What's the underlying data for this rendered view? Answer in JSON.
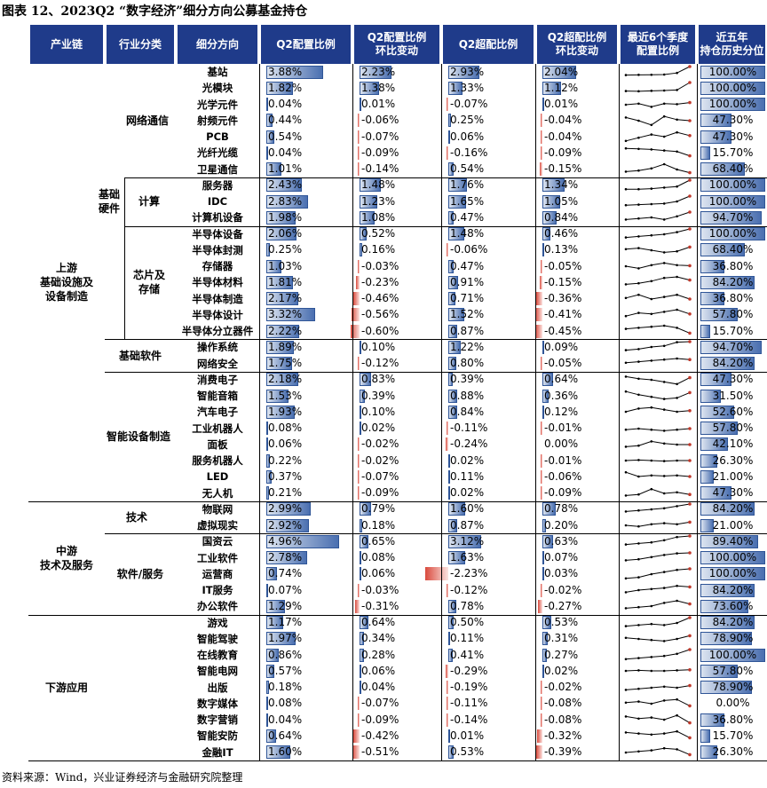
{
  "title": "图表 12、2023Q2 “数字经济”细分方向公募基金持仓",
  "headers": [
    {
      "l1": "产业链",
      "l2": ""
    },
    {
      "l1": "行业分类",
      "l2": ""
    },
    {
      "l1": "细分方向",
      "l2": ""
    },
    {
      "l1": "Q2配置比例",
      "l2": ""
    },
    {
      "l1": "Q2配置比例",
      "l2": "环比变动"
    },
    {
      "l1": "Q2超配比例",
      "l2": ""
    },
    {
      "l1": "Q2超配比例",
      "l2": "环比变动"
    },
    {
      "l1": "最近6个季度",
      "l2": "配置比例"
    },
    {
      "l1": "近五年",
      "l2": "持仓历史分位"
    }
  ],
  "groups": {
    "upstream": "上游\n基础设施及\n设备制造",
    "midstream": "中游\n技术及服务",
    "downstream": "下游应用",
    "basic_hardware": "基础\n硬件",
    "network_comm": "网络通信",
    "computing": "计算",
    "chips_storage": "芯片及\n存储",
    "basic_software": "基础软件",
    "smart_devices": "智能设备制造",
    "technology": "技术",
    "software_services": "软件/服务"
  },
  "rows": [
    {
      "name": "基站",
      "alloc": "3.88%",
      "alloc_v": 3.88,
      "chg": "2.23%",
      "chg_v": 2.23,
      "over": "2.93%",
      "over_v": 2.93,
      "ochg": "2.04%",
      "ochg_v": 2.04,
      "pct": "100.00%",
      "pct_v": 100,
      "spark": [
        0.2,
        0.22,
        0.23,
        0.25,
        0.4,
        1.0
      ]
    },
    {
      "name": "光模块",
      "alloc": "1.82%",
      "alloc_v": 1.82,
      "chg": "1.38%",
      "chg_v": 1.38,
      "over": "1.33%",
      "over_v": 1.33,
      "ochg": "1.12%",
      "ochg_v": 1.12,
      "pct": "100.00%",
      "pct_v": 100,
      "spark": [
        0.2,
        0.18,
        0.22,
        0.25,
        0.3,
        1.0
      ]
    },
    {
      "name": "光学元件",
      "alloc": "0.04%",
      "alloc_v": 0.04,
      "chg": "0.01%",
      "chg_v": 0.01,
      "over": "-0.07%",
      "over_v": -0.07,
      "ochg": "0.01%",
      "ochg_v": 0.01,
      "pct": "100.00%",
      "pct_v": 100,
      "spark": [
        0.5,
        0.6,
        0.3,
        0.6,
        0.55,
        0.7
      ]
    },
    {
      "name": "射频元件",
      "alloc": "0.44%",
      "alloc_v": 0.44,
      "chg": "-0.06%",
      "chg_v": -0.06,
      "over": "0.25%",
      "over_v": 0.25,
      "ochg": "-0.04%",
      "ochg_v": -0.04,
      "pct": "47.30%",
      "pct_v": 47.3,
      "spark": [
        0.8,
        0.5,
        0.1,
        0.9,
        0.6,
        0.5
      ]
    },
    {
      "name": "PCB",
      "alloc": "0.54%",
      "alloc_v": 0.54,
      "chg": "-0.07%",
      "chg_v": -0.07,
      "over": "0.06%",
      "over_v": 0.06,
      "ochg": "-0.04%",
      "ochg_v": -0.04,
      "pct": "47.30%",
      "pct_v": 47.3,
      "spark": [
        0.1,
        0.4,
        0.7,
        0.5,
        0.9,
        0.6
      ]
    },
    {
      "name": "光纤光缆",
      "alloc": "0.04%",
      "alloc_v": 0.04,
      "chg": "-0.09%",
      "chg_v": -0.09,
      "over": "-0.16%",
      "over_v": -0.16,
      "ochg": "-0.09%",
      "ochg_v": -0.09,
      "pct": "15.70%",
      "pct_v": 15.7,
      "spark": [
        0.9,
        0.85,
        0.8,
        0.7,
        0.6,
        0.2
      ]
    },
    {
      "name": "卫星通信",
      "alloc": "1.01%",
      "alloc_v": 1.01,
      "chg": "-0.14%",
      "chg_v": -0.14,
      "over": "0.54%",
      "over_v": 0.54,
      "ochg": "-0.15%",
      "ochg_v": -0.15,
      "pct": "68.40%",
      "pct_v": 68.4,
      "spark": [
        0.3,
        0.4,
        0.6,
        1.0,
        0.5,
        0.2
      ]
    },
    {
      "name": "服务器",
      "alloc": "2.43%",
      "alloc_v": 2.43,
      "chg": "1.48%",
      "chg_v": 1.48,
      "over": "1.76%",
      "over_v": 1.76,
      "ochg": "1.34%",
      "ochg_v": 1.34,
      "pct": "100.00%",
      "pct_v": 100,
      "spark": [
        0.15,
        0.15,
        0.2,
        0.3,
        0.4,
        1.0
      ]
    },
    {
      "name": "IDC",
      "alloc": "2.83%",
      "alloc_v": 2.83,
      "chg": "1.23%",
      "chg_v": 1.23,
      "over": "1.65%",
      "over_v": 1.65,
      "ochg": "1.05%",
      "ochg_v": 1.05,
      "pct": "100.00%",
      "pct_v": 100,
      "spark": [
        0.15,
        0.2,
        0.25,
        0.3,
        0.5,
        1.0
      ]
    },
    {
      "name": "计算机设备",
      "alloc": "1.98%",
      "alloc_v": 1.98,
      "chg": "1.08%",
      "chg_v": 1.08,
      "over": "0.47%",
      "over_v": 0.47,
      "ochg": "0.84%",
      "ochg_v": 0.84,
      "pct": "94.70%",
      "pct_v": 94.7,
      "spark": [
        0.3,
        0.4,
        0.5,
        0.3,
        0.6,
        1.0
      ]
    },
    {
      "name": "半导体设备",
      "alloc": "2.06%",
      "alloc_v": 2.06,
      "chg": "0.52%",
      "chg_v": 0.52,
      "over": "1.48%",
      "over_v": 1.48,
      "ochg": "0.46%",
      "ochg_v": 0.46,
      "pct": "100.00%",
      "pct_v": 100,
      "spark": [
        0.2,
        0.3,
        0.4,
        0.5,
        0.7,
        1.0
      ]
    },
    {
      "name": "半导体封测",
      "alloc": "0.25%",
      "alloc_v": 0.25,
      "chg": "0.16%",
      "chg_v": 0.16,
      "over": "-0.06%",
      "over_v": -0.06,
      "ochg": "0.13%",
      "ochg_v": 0.13,
      "pct": "68.40%",
      "pct_v": 68.4,
      "spark": [
        0.6,
        0.7,
        0.5,
        0.3,
        0.4,
        0.8
      ]
    },
    {
      "name": "存储器",
      "alloc": "1.03%",
      "alloc_v": 1.03,
      "chg": "-0.03%",
      "chg_v": -0.03,
      "over": "0.47%",
      "over_v": 0.47,
      "ochg": "-0.05%",
      "ochg_v": -0.05,
      "pct": "36.80%",
      "pct_v": 36.8,
      "spark": [
        0.5,
        0.3,
        0.6,
        0.8,
        0.6,
        0.55
      ]
    },
    {
      "name": "半导体材料",
      "alloc": "1.81%",
      "alloc_v": 1.81,
      "chg": "-0.23%",
      "chg_v": -0.23,
      "over": "0.91%",
      "over_v": 0.91,
      "ochg": "-0.15%",
      "ochg_v": -0.15,
      "pct": "84.20%",
      "pct_v": 84.2,
      "spark": [
        0.3,
        0.4,
        0.6,
        0.9,
        1.0,
        0.7
      ]
    },
    {
      "name": "半导体制造",
      "alloc": "2.17%",
      "alloc_v": 2.17,
      "chg": "-0.46%",
      "chg_v": -0.46,
      "over": "0.71%",
      "over_v": 0.71,
      "ochg": "-0.36%",
      "ochg_v": -0.36,
      "pct": "36.80%",
      "pct_v": 36.8,
      "spark": [
        0.6,
        0.9,
        0.5,
        0.7,
        0.9,
        0.5
      ]
    },
    {
      "name": "半导体设计",
      "alloc": "3.32%",
      "alloc_v": 3.32,
      "chg": "-0.56%",
      "chg_v": -0.56,
      "over": "1.52%",
      "over_v": 1.52,
      "ochg": "-0.41%",
      "ochg_v": -0.41,
      "pct": "57.80%",
      "pct_v": 57.8,
      "spark": [
        0.4,
        0.7,
        0.6,
        0.8,
        1.0,
        0.6
      ]
    },
    {
      "name": "半导体分立器件",
      "alloc": "2.22%",
      "alloc_v": 2.22,
      "chg": "-0.60%",
      "chg_v": -0.6,
      "over": "0.87%",
      "over_v": 0.87,
      "ochg": "-0.45%",
      "ochg_v": -0.45,
      "pct": "15.70%",
      "pct_v": 15.7,
      "spark": [
        0.7,
        0.8,
        0.9,
        1.0,
        0.8,
        0.3
      ]
    },
    {
      "name": "操作系统",
      "alloc": "1.89%",
      "alloc_v": 1.89,
      "chg": "0.10%",
      "chg_v": 0.1,
      "over": "1.22%",
      "over_v": 1.22,
      "ochg": "0.09%",
      "ochg_v": 0.09,
      "pct": "94.70%",
      "pct_v": 94.7,
      "spark": [
        0.2,
        0.3,
        0.5,
        0.6,
        0.95,
        1.0
      ]
    },
    {
      "name": "网络安全",
      "alloc": "1.75%",
      "alloc_v": 1.75,
      "chg": "-0.12%",
      "chg_v": -0.12,
      "over": "0.80%",
      "over_v": 0.8,
      "ochg": "-0.05%",
      "ochg_v": -0.05,
      "pct": "84.20%",
      "pct_v": 84.2,
      "spark": [
        0.6,
        0.7,
        0.8,
        0.9,
        1.0,
        0.9
      ]
    },
    {
      "name": "消费电子",
      "alloc": "2.18%",
      "alloc_v": 2.18,
      "chg": "0.83%",
      "chg_v": 0.83,
      "over": "0.39%",
      "over_v": 0.39,
      "ochg": "0.64%",
      "ochg_v": 0.64,
      "pct": "47.30%",
      "pct_v": 47.3,
      "spark": [
        0.8,
        0.6,
        0.5,
        0.3,
        0.1,
        0.7
      ]
    },
    {
      "name": "智能音箱",
      "alloc": "1.53%",
      "alloc_v": 1.53,
      "chg": "0.39%",
      "chg_v": 0.39,
      "over": "0.88%",
      "over_v": 0.88,
      "ochg": "0.36%",
      "ochg_v": 0.36,
      "pct": "31.50%",
      "pct_v": 31.5,
      "spark": [
        0.9,
        0.6,
        0.4,
        0.2,
        0.3,
        0.8
      ]
    },
    {
      "name": "汽车电子",
      "alloc": "1.93%",
      "alloc_v": 1.93,
      "chg": "0.10%",
      "chg_v": 0.1,
      "over": "0.84%",
      "over_v": 0.84,
      "ochg": "0.12%",
      "ochg_v": 0.12,
      "pct": "52.60%",
      "pct_v": 52.6,
      "spark": [
        0.5,
        0.8,
        0.9,
        0.7,
        0.5,
        0.6
      ]
    },
    {
      "name": "工业机器人",
      "alloc": "0.08%",
      "alloc_v": 0.08,
      "chg": "0.02%",
      "chg_v": 0.02,
      "over": "-0.11%",
      "over_v": -0.11,
      "ochg": "-0.01%",
      "ochg_v": -0.01,
      "pct": "57.80%",
      "pct_v": 57.8,
      "spark": [
        0.4,
        0.5,
        0.4,
        0.3,
        0.4,
        0.5
      ]
    },
    {
      "name": "面板",
      "alloc": "0.06%",
      "alloc_v": 0.06,
      "chg": "-0.02%",
      "chg_v": -0.02,
      "over": "-0.24%",
      "over_v": -0.24,
      "ochg": "0.00%",
      "ochg_v": 0.0,
      "pct": "42.10%",
      "pct_v": 42.1,
      "spark": [
        0.3,
        0.4,
        0.8,
        0.6,
        0.5,
        0.5
      ]
    },
    {
      "name": "服务机器人",
      "alloc": "0.22%",
      "alloc_v": 0.22,
      "chg": "-0.02%",
      "chg_v": -0.02,
      "over": "0.02%",
      "over_v": 0.02,
      "ochg": "-0.01%",
      "ochg_v": -0.01,
      "pct": "26.30%",
      "pct_v": 26.3,
      "spark": [
        0.5,
        0.55,
        0.5,
        0.45,
        0.5,
        0.5
      ]
    },
    {
      "name": "LED",
      "alloc": "0.37%",
      "alloc_v": 0.37,
      "chg": "-0.07%",
      "chg_v": -0.07,
      "over": "0.11%",
      "over_v": 0.11,
      "ochg": "-0.06%",
      "ochg_v": -0.06,
      "pct": "21.00%",
      "pct_v": 21.0,
      "spark": [
        0.9,
        0.5,
        0.6,
        0.55,
        0.6,
        0.5
      ]
    },
    {
      "name": "无人机",
      "alloc": "0.21%",
      "alloc_v": 0.21,
      "chg": "-0.09%",
      "chg_v": -0.09,
      "over": "0.02%",
      "over_v": 0.02,
      "ochg": "-0.09%",
      "ochg_v": -0.09,
      "pct": "47.30%",
      "pct_v": 47.3,
      "spark": [
        0.3,
        0.4,
        0.9,
        0.5,
        0.6,
        0.4
      ]
    },
    {
      "name": "物联网",
      "alloc": "2.99%",
      "alloc_v": 2.99,
      "chg": "0.79%",
      "chg_v": 0.79,
      "over": "1.60%",
      "over_v": 1.6,
      "ochg": "0.78%",
      "ochg_v": 0.78,
      "pct": "84.20%",
      "pct_v": 84.2,
      "spark": [
        0.3,
        0.4,
        0.5,
        0.6,
        0.8,
        1.0
      ]
    },
    {
      "name": "虚拟现实",
      "alloc": "2.92%",
      "alloc_v": 2.92,
      "chg": "0.18%",
      "chg_v": 0.18,
      "over": "0.87%",
      "over_v": 0.87,
      "ochg": "0.20%",
      "ochg_v": 0.2,
      "pct": "21.00%",
      "pct_v": 21.0,
      "spark": [
        0.5,
        0.4,
        0.6,
        0.7,
        0.6,
        0.8
      ]
    },
    {
      "name": "国资云",
      "alloc": "4.96%",
      "alloc_v": 4.96,
      "chg": "0.65%",
      "chg_v": 0.65,
      "over": "3.12%",
      "over_v": 3.12,
      "ochg": "0.63%",
      "ochg_v": 0.63,
      "pct": "89.40%",
      "pct_v": 89.4,
      "spark": [
        0.2,
        0.3,
        0.4,
        0.6,
        0.9,
        1.0
      ]
    },
    {
      "name": "工业软件",
      "alloc": "2.78%",
      "alloc_v": 2.78,
      "chg": "0.08%",
      "chg_v": 0.08,
      "over": "1.63%",
      "over_v": 1.63,
      "ochg": "0.07%",
      "ochg_v": 0.07,
      "pct": "100.00%",
      "pct_v": 100,
      "spark": [
        0.3,
        0.4,
        0.6,
        0.8,
        0.95,
        1.0
      ]
    },
    {
      "name": "运营商",
      "alloc": "0.74%",
      "alloc_v": 0.74,
      "chg": "0.06%",
      "chg_v": 0.06,
      "over": "-2.23%",
      "over_v": -2.23,
      "ochg": "0.03%",
      "ochg_v": 0.03,
      "pct": "100.00%",
      "pct_v": 100,
      "spark": [
        0.1,
        0.2,
        0.5,
        0.7,
        0.9,
        1.0
      ]
    },
    {
      "name": "IT服务",
      "alloc": "0.07%",
      "alloc_v": 0.07,
      "chg": "-0.03%",
      "chg_v": -0.03,
      "over": "-0.12%",
      "over_v": -0.12,
      "ochg": "-0.02%",
      "ochg_v": -0.02,
      "pct": "84.20%",
      "pct_v": 84.2,
      "spark": [
        0.3,
        0.5,
        0.6,
        0.7,
        0.9,
        0.8
      ]
    },
    {
      "name": "办公软件",
      "alloc": "1.29%",
      "alloc_v": 1.29,
      "chg": "-0.31%",
      "chg_v": -0.31,
      "over": "0.78%",
      "over_v": 0.78,
      "ochg": "-0.27%",
      "ochg_v": -0.27,
      "pct": "73.60%",
      "pct_v": 73.6,
      "spark": [
        0.3,
        0.4,
        0.5,
        0.8,
        1.0,
        0.7
      ]
    },
    {
      "name": "游戏",
      "alloc": "1.17%",
      "alloc_v": 1.17,
      "chg": "0.64%",
      "chg_v": 0.64,
      "over": "0.50%",
      "over_v": 0.5,
      "ochg": "0.53%",
      "ochg_v": 0.53,
      "pct": "84.20%",
      "pct_v": 84.2,
      "spark": [
        0.2,
        0.3,
        0.4,
        0.3,
        0.5,
        1.0
      ]
    },
    {
      "name": "智能驾驶",
      "alloc": "1.97%",
      "alloc_v": 1.97,
      "chg": "0.34%",
      "chg_v": 0.34,
      "over": "0.11%",
      "over_v": 0.11,
      "ochg": "0.31%",
      "ochg_v": 0.31,
      "pct": "78.90%",
      "pct_v": 78.9,
      "spark": [
        0.6,
        0.5,
        0.4,
        0.3,
        0.5,
        0.8
      ]
    },
    {
      "name": "在线教育",
      "alloc": "0.86%",
      "alloc_v": 0.86,
      "chg": "0.28%",
      "chg_v": 0.28,
      "over": "0.41%",
      "over_v": 0.41,
      "ochg": "0.27%",
      "ochg_v": 0.27,
      "pct": "100.00%",
      "pct_v": 100,
      "spark": [
        0.1,
        0.2,
        0.3,
        0.4,
        0.6,
        1.0
      ]
    },
    {
      "name": "智能电网",
      "alloc": "0.57%",
      "alloc_v": 0.57,
      "chg": "0.06%",
      "chg_v": 0.06,
      "over": "-0.29%",
      "over_v": -0.29,
      "ochg": "0.02%",
      "ochg_v": 0.02,
      "pct": "57.80%",
      "pct_v": 57.8,
      "spark": [
        0.5,
        0.55,
        0.5,
        0.5,
        0.55,
        0.6
      ]
    },
    {
      "name": "出版",
      "alloc": "0.18%",
      "alloc_v": 0.18,
      "chg": "0.04%",
      "chg_v": 0.04,
      "over": "-0.19%",
      "over_v": -0.19,
      "ochg": "-0.02%",
      "ochg_v": -0.02,
      "pct": "78.90%",
      "pct_v": 78.9,
      "spark": [
        0.3,
        0.4,
        0.5,
        0.6,
        0.5,
        0.7
      ]
    },
    {
      "name": "数字媒体",
      "alloc": "0.08%",
      "alloc_v": 0.08,
      "chg": "-0.07%",
      "chg_v": -0.07,
      "over": "-0.11%",
      "over_v": -0.11,
      "ochg": "-0.08%",
      "ochg_v": -0.08,
      "pct": "0.00%",
      "pct_v": 0,
      "spark": [
        0.6,
        0.7,
        0.5,
        0.8,
        0.9,
        0.3
      ]
    },
    {
      "name": "数字营销",
      "alloc": "0.04%",
      "alloc_v": 0.04,
      "chg": "-0.09%",
      "chg_v": -0.09,
      "over": "-0.14%",
      "over_v": -0.14,
      "ochg": "-0.08%",
      "ochg_v": -0.08,
      "pct": "36.80%",
      "pct_v": 36.8,
      "spark": [
        0.8,
        0.6,
        0.7,
        0.5,
        0.9,
        0.2
      ]
    },
    {
      "name": "智能安防",
      "alloc": "0.64%",
      "alloc_v": 0.64,
      "chg": "-0.42%",
      "chg_v": -0.42,
      "over": "0.01%",
      "over_v": 0.01,
      "ochg": "-0.32%",
      "ochg_v": -0.32,
      "pct": "15.70%",
      "pct_v": 15.7,
      "spark": [
        0.8,
        0.7,
        0.6,
        0.7,
        0.9,
        0.3
      ]
    },
    {
      "name": "金融IT",
      "alloc": "1.60%",
      "alloc_v": 1.6,
      "chg": "-0.51%",
      "chg_v": -0.51,
      "over": "0.53%",
      "over_v": 0.53,
      "ochg": "-0.39%",
      "ochg_v": -0.39,
      "pct": "26.30%",
      "pct_v": 26.3,
      "spark": [
        0.5,
        0.6,
        0.7,
        0.9,
        0.8,
        0.3
      ]
    }
  ],
  "source": "资料来源：Wind，兴业证券经济与金融研究院整理",
  "colors": {
    "header_bg": "#1f3b8a",
    "bar_pos": "#4a6fb0",
    "bar_border": "#2f5597",
    "bar_neg": "#d94a3d",
    "spark_line": "#000000",
    "spark_end": "#c0392b"
  }
}
